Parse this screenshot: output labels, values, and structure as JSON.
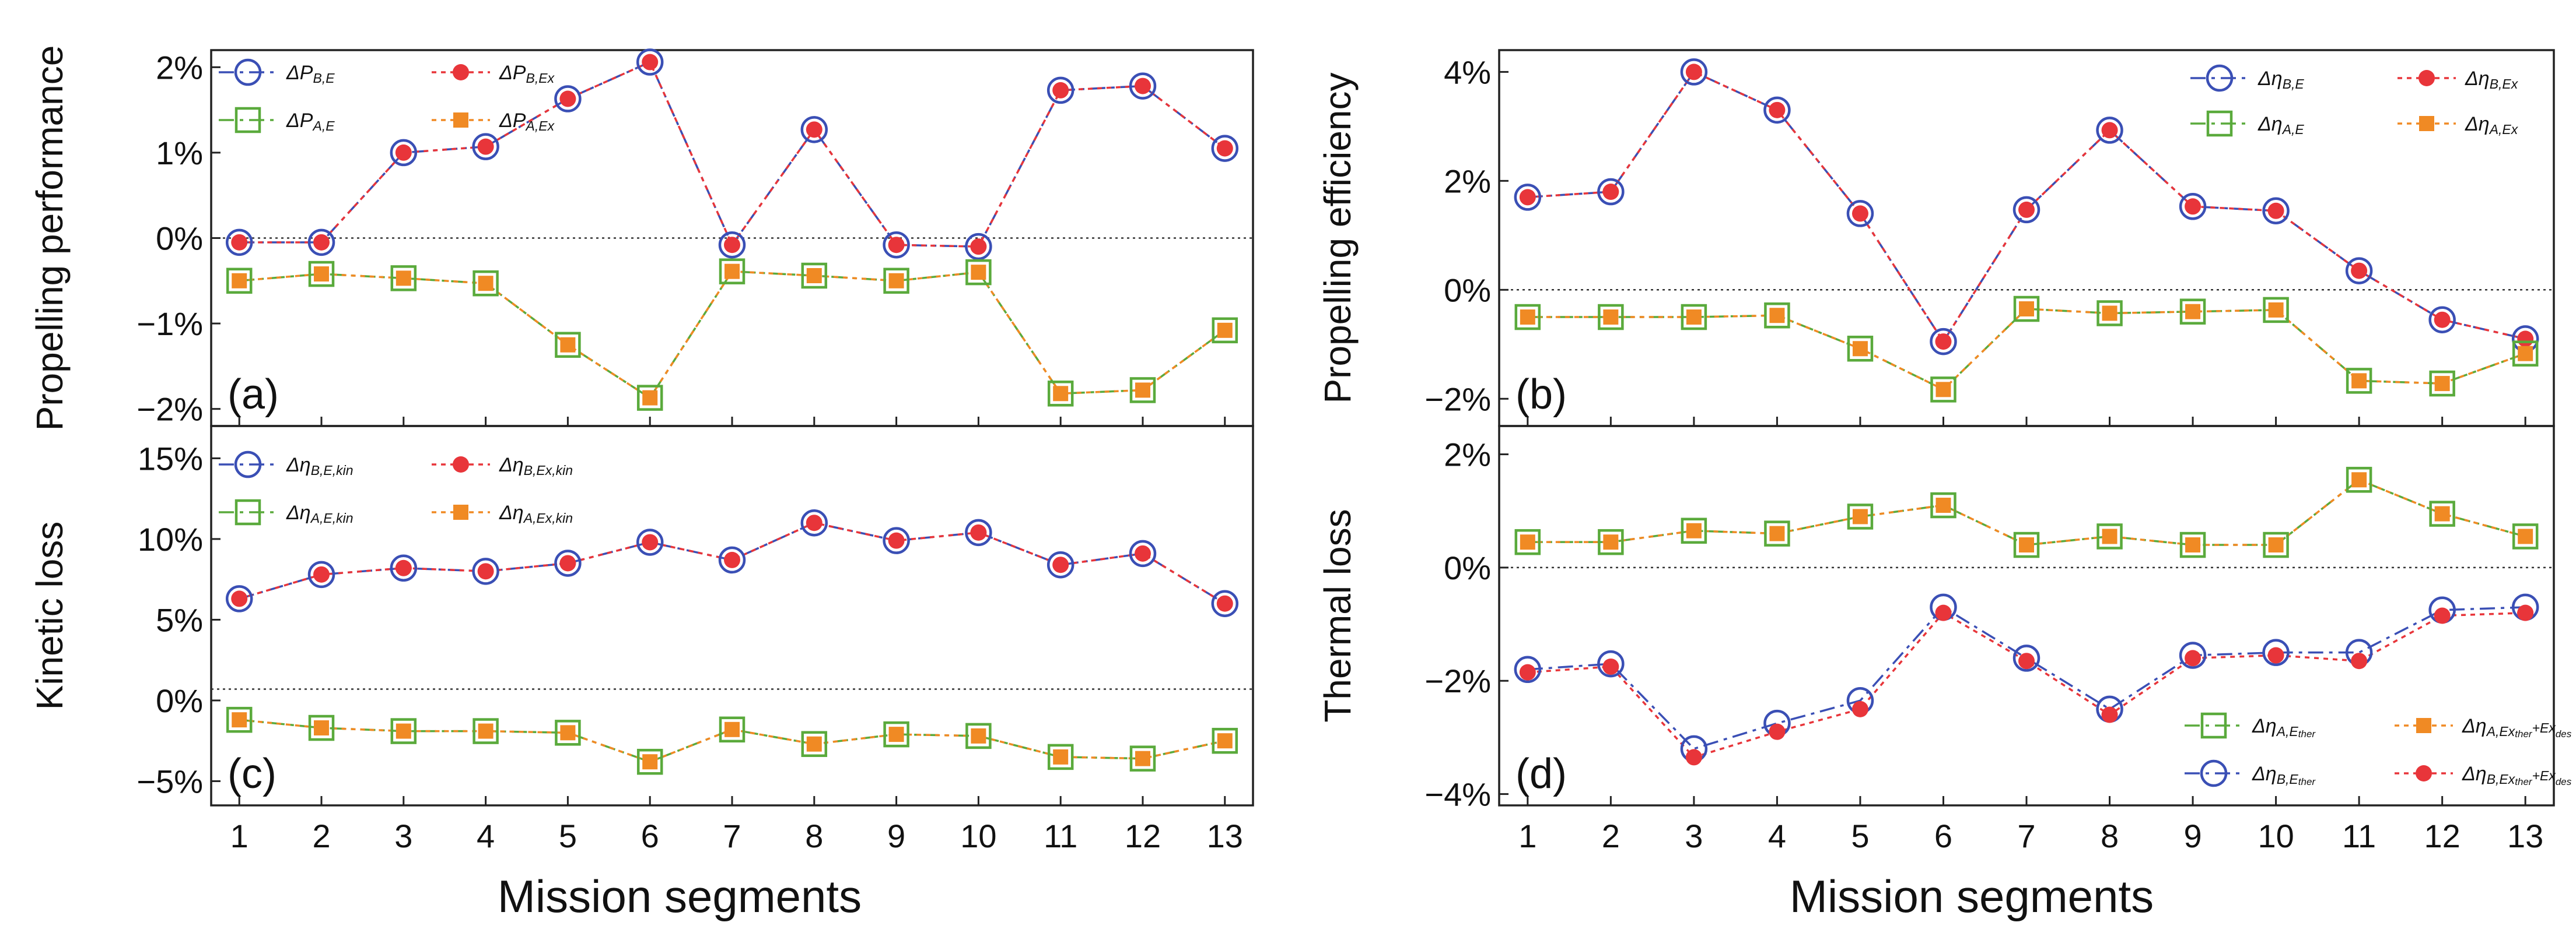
{
  "figure": {
    "xlabel": "Mission segments"
  },
  "chart_data": [
    {
      "id": "a",
      "type": "line",
      "panel_label": "(a)",
      "ylabel": "Propelling performance",
      "xlabel": "",
      "categories": [
        "1",
        "2",
        "3",
        "4",
        "5",
        "6",
        "7",
        "8",
        "9",
        "10",
        "11",
        "12",
        "13"
      ],
      "x": [
        1,
        2,
        3,
        4,
        5,
        6,
        7,
        8,
        9,
        10,
        11,
        12,
        13
      ],
      "ylim": [
        -2.2,
        2.2
      ],
      "yticks": [
        -2,
        -1,
        0,
        1,
        2
      ],
      "yticklabels": [
        "−2%",
        "−1%",
        "0%",
        "1%",
        "2%"
      ],
      "show_xticklabels": false,
      "zero_line": true,
      "legend_position": "top-left",
      "series": [
        {
          "name": "ΔP_B,E",
          "main": "ΔP",
          "sub": "B,E",
          "marker": "circle",
          "color": "#3a4fb5",
          "dash": "26,10,6,10",
          "values": [
            -0.05,
            -0.05,
            1.0,
            1.07,
            1.63,
            2.06,
            -0.08,
            1.27,
            -0.08,
            -0.1,
            1.73,
            1.78,
            1.05
          ]
        },
        {
          "name": "ΔP_B,Ex",
          "main": "ΔP",
          "sub": "B,Ex",
          "marker": "dot",
          "color": "#e8353a",
          "dash": "8,8",
          "values": [
            -0.05,
            -0.05,
            1.0,
            1.07,
            1.63,
            2.06,
            -0.08,
            1.27,
            -0.08,
            -0.1,
            1.73,
            1.78,
            1.05
          ]
        },
        {
          "name": "ΔP_A,E",
          "main": "ΔP",
          "sub": "A,E",
          "marker": "square",
          "color": "#5aaa3c",
          "dash": "26,10,6,10",
          "values": [
            -0.5,
            -0.42,
            -0.47,
            -0.53,
            -1.25,
            -1.87,
            -0.39,
            -0.44,
            -0.5,
            -0.4,
            -1.82,
            -1.78,
            -1.08
          ]
        },
        {
          "name": "ΔP_A,Ex",
          "main": "ΔP",
          "sub": "A,Ex",
          "marker": "fsquare",
          "color": "#f08a24",
          "dash": "8,8",
          "values": [
            -0.5,
            -0.42,
            -0.47,
            -0.53,
            -1.25,
            -1.87,
            -0.39,
            -0.44,
            -0.5,
            -0.4,
            -1.82,
            -1.78,
            -1.08
          ]
        }
      ]
    },
    {
      "id": "b",
      "type": "line",
      "panel_label": "(b)",
      "ylabel": "Propelling efficiency",
      "xlabel": "",
      "categories": [
        "1",
        "2",
        "3",
        "4",
        "5",
        "6",
        "7",
        "8",
        "9",
        "10",
        "11",
        "12",
        "13"
      ],
      "x": [
        1,
        2,
        3,
        4,
        5,
        6,
        7,
        8,
        9,
        10,
        11,
        12,
        13
      ],
      "ylim": [
        -2.5,
        4.4
      ],
      "yticks": [
        -2,
        0,
        2,
        4
      ],
      "yticklabels": [
        "−2%",
        "0%",
        "2%",
        "4%"
      ],
      "show_xticklabels": false,
      "zero_line": true,
      "legend_position": "top-right",
      "series": [
        {
          "name": "Δη_B,E",
          "main": "Δη",
          "sub": "B,E",
          "marker": "circle",
          "color": "#3a4fb5",
          "dash": "26,10,6,10",
          "values": [
            1.7,
            1.8,
            4.0,
            3.3,
            1.4,
            -0.95,
            1.47,
            2.93,
            1.53,
            1.45,
            0.35,
            -0.55,
            -0.9
          ]
        },
        {
          "name": "Δη_B,Ex",
          "main": "Δη",
          "sub": "B,Ex",
          "marker": "dot",
          "color": "#e8353a",
          "dash": "8,8",
          "values": [
            1.7,
            1.8,
            4.0,
            3.3,
            1.4,
            -0.95,
            1.47,
            2.93,
            1.53,
            1.45,
            0.35,
            -0.55,
            -0.9
          ]
        },
        {
          "name": "Δη_A,E",
          "main": "Δη",
          "sub": "A,E",
          "marker": "square",
          "color": "#5aaa3c",
          "dash": "26,10,6,10",
          "values": [
            -0.5,
            -0.5,
            -0.5,
            -0.47,
            -1.08,
            -1.83,
            -0.35,
            -0.43,
            -0.4,
            -0.37,
            -1.67,
            -1.72,
            -1.17
          ]
        },
        {
          "name": "Δη_A,Ex",
          "main": "Δη",
          "sub": "A,Ex",
          "marker": "fsquare",
          "color": "#f08a24",
          "dash": "8,8",
          "values": [
            -0.5,
            -0.5,
            -0.5,
            -0.47,
            -1.08,
            -1.83,
            -0.35,
            -0.43,
            -0.4,
            -0.37,
            -1.67,
            -1.72,
            -1.17
          ]
        }
      ]
    },
    {
      "id": "c",
      "type": "line",
      "panel_label": "(c)",
      "ylabel": "Kinetic loss",
      "xlabel": "Mission segments",
      "categories": [
        "1",
        "2",
        "3",
        "4",
        "5",
        "6",
        "7",
        "8",
        "9",
        "10",
        "11",
        "12",
        "13"
      ],
      "x": [
        1,
        2,
        3,
        4,
        5,
        6,
        7,
        8,
        9,
        10,
        11,
        12,
        13
      ],
      "ylim": [
        -6.5,
        17
      ],
      "yticks": [
        -5,
        0,
        5,
        10,
        15
      ],
      "yticklabels": [
        "−5%",
        "0%",
        "5%",
        "10%",
        "15%"
      ],
      "show_xticklabels": true,
      "zero_line": true,
      "zero_line_at": 0.7,
      "legend_position": "top-left",
      "series": [
        {
          "name": "Δη_B,E,kin",
          "main": "Δη",
          "sub": "B,E,kin",
          "marker": "circle",
          "color": "#3a4fb5",
          "dash": "26,10,6,10",
          "values": [
            6.3,
            7.8,
            8.2,
            8.0,
            8.5,
            9.8,
            8.7,
            11.0,
            9.9,
            10.4,
            8.4,
            9.1,
            6.0
          ]
        },
        {
          "name": "Δη_B,Ex,kin",
          "main": "Δη",
          "sub": "B,Ex,kin",
          "marker": "dot",
          "color": "#e8353a",
          "dash": "8,8",
          "values": [
            6.3,
            7.8,
            8.2,
            8.0,
            8.5,
            9.8,
            8.7,
            11.0,
            9.9,
            10.4,
            8.4,
            9.1,
            6.0
          ]
        },
        {
          "name": "Δη_A,E,kin",
          "main": "Δη",
          "sub": "A,E,kin",
          "marker": "square",
          "color": "#5aaa3c",
          "dash": "26,10,6,10",
          "values": [
            -1.2,
            -1.7,
            -1.9,
            -1.9,
            -2.0,
            -3.8,
            -1.8,
            -2.7,
            -2.1,
            -2.2,
            -3.5,
            -3.6,
            -2.5
          ]
        },
        {
          "name": "Δη_A,Ex,kin",
          "main": "Δη",
          "sub": "A,Ex,kin",
          "marker": "fsquare",
          "color": "#f08a24",
          "dash": "8,8",
          "values": [
            -1.2,
            -1.7,
            -1.9,
            -1.9,
            -2.0,
            -3.8,
            -1.8,
            -2.7,
            -2.1,
            -2.2,
            -3.5,
            -3.6,
            -2.5
          ]
        }
      ]
    },
    {
      "id": "d",
      "type": "line",
      "panel_label": "(d)",
      "ylabel": "Thermal loss",
      "xlabel": "Mission segments",
      "categories": [
        "1",
        "2",
        "3",
        "4",
        "5",
        "6",
        "7",
        "8",
        "9",
        "10",
        "11",
        "12",
        "13"
      ],
      "x": [
        1,
        2,
        3,
        4,
        5,
        6,
        7,
        8,
        9,
        10,
        11,
        12,
        13
      ],
      "ylim": [
        -4.2,
        2.5
      ],
      "yticks": [
        -4,
        -2,
        0,
        2
      ],
      "yticklabels": [
        "−4%",
        "−2%",
        "0%",
        "2%"
      ],
      "show_xticklabels": true,
      "zero_line": true,
      "legend_position": "bottom-right",
      "series": [
        {
          "name": "Δη_A,E_ther",
          "main": "Δη",
          "sub": "A,E",
          "subsub": "ther",
          "marker": "square",
          "color": "#5aaa3c",
          "dash": "26,10,6,10",
          "values": [
            0.45,
            0.45,
            0.65,
            0.6,
            0.9,
            1.1,
            0.4,
            0.55,
            0.4,
            0.4,
            1.55,
            0.95,
            0.55
          ]
        },
        {
          "name": "Δη_A,Ex_ther+Ex_des",
          "main": "Δη",
          "sub": "A,Ex",
          "subsub": "ther",
          "mid": "+Ex",
          "subsub2": "des",
          "marker": "fsquare",
          "color": "#f08a24",
          "dash": "8,8",
          "values": [
            0.45,
            0.45,
            0.65,
            0.6,
            0.9,
            1.1,
            0.4,
            0.55,
            0.4,
            0.4,
            1.55,
            0.95,
            0.55
          ]
        },
        {
          "name": "Δη_B,E_ther",
          "main": "Δη",
          "sub": "B,E",
          "subsub": "ther",
          "marker": "circle",
          "color": "#3a4fb5",
          "dash": "26,10,6,10",
          "values": [
            -1.8,
            -1.7,
            -3.2,
            -2.75,
            -2.35,
            -0.7,
            -1.6,
            -2.5,
            -1.55,
            -1.5,
            -1.5,
            -0.75,
            -0.7
          ]
        },
        {
          "name": "Δη_B,Ex_ther+Ex_des",
          "main": "Δη",
          "sub": "B,Ex",
          "subsub": "ther",
          "mid": "+Ex",
          "subsub2": "des",
          "marker": "dot",
          "color": "#e8353a",
          "dash": "8,8",
          "values": [
            -1.85,
            -1.75,
            -3.35,
            -2.9,
            -2.5,
            -0.8,
            -1.65,
            -2.6,
            -1.6,
            -1.55,
            -1.65,
            -0.85,
            -0.8
          ]
        }
      ]
    }
  ]
}
